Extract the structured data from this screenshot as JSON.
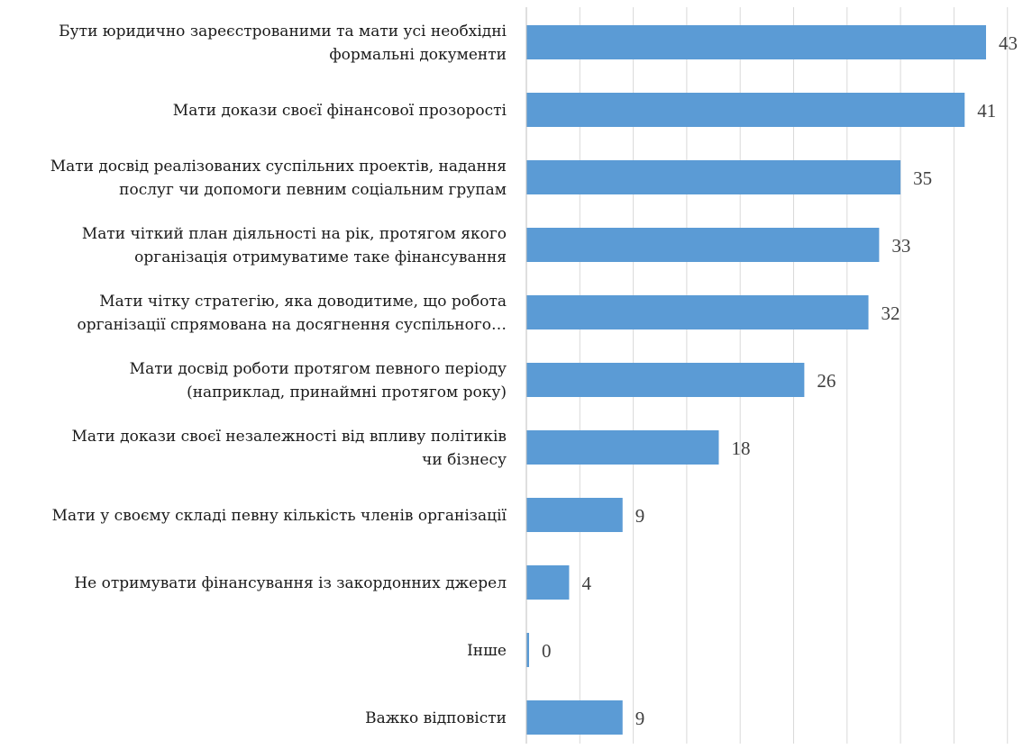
{
  "chart_data": {
    "type": "bar",
    "orientation": "horizontal",
    "categories": [
      [
        "Бути юридично зареєстрованими та мати усі необхідні",
        "формальні документи"
      ],
      [
        "Мати докази своєї фінансової прозорості"
      ],
      [
        "Мати досвід реалізованих суспільних проектів, надання",
        "послуг чи допомоги певним соціальним групам"
      ],
      [
        "Мати чіткий план діяльності на рік, протягом якого",
        "організація отримуватиме таке фінансування"
      ],
      [
        "Мати чітку стратегію, яка доводитиме, що робота",
        "організації спрямована на досягнення суспільного…"
      ],
      [
        "Мати досвід роботи протягом певного періоду",
        "(наприклад, принаймні протягом року)"
      ],
      [
        "Мати докази своєї незалежності від впливу політиків",
        "чи бізнесу"
      ],
      [
        "Мати у своєму складі певну кількість членів організації"
      ],
      [
        "Не отримувати фінансування із закордонних джерел"
      ],
      [
        "Інше"
      ],
      [
        "Важко відповісти"
      ]
    ],
    "values": [
      43,
      41,
      35,
      33,
      32,
      26,
      18,
      9,
      4,
      0,
      9
    ],
    "value_labels": [
      "43",
      "41",
      "35",
      "33",
      "32",
      "26",
      "18",
      "9",
      "4",
      "0",
      "9"
    ],
    "xlim": [
      0,
      45
    ],
    "grid": true,
    "bar_color": "#5b9bd5",
    "legend": "none"
  }
}
